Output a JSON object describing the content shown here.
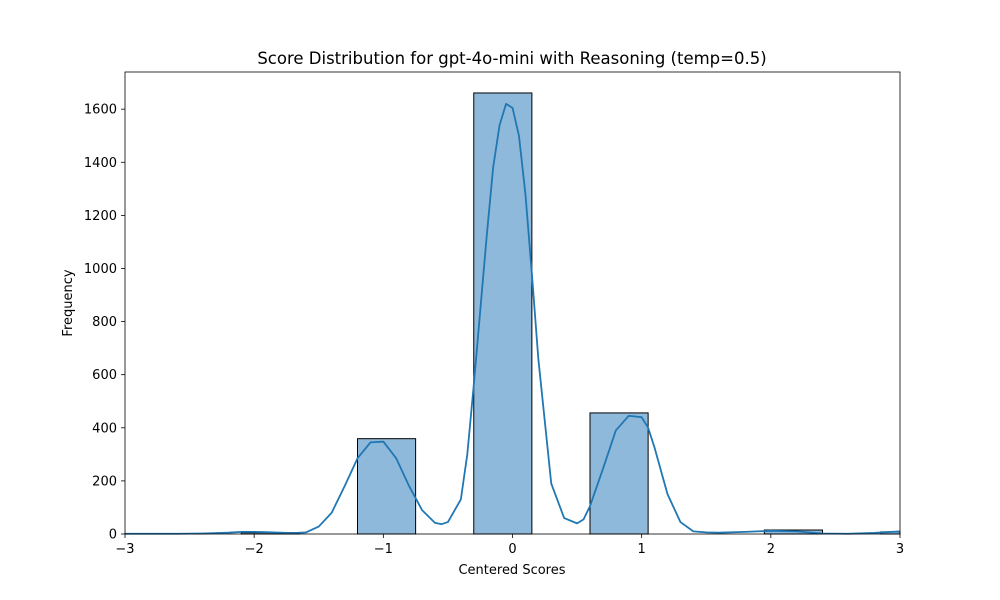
{
  "chart_data": {
    "type": "bar",
    "title": "Score Distribution for gpt-4o-mini with Reasoning (temp=0.5)",
    "xlabel": "Centered Scores",
    "ylabel": "Frequency",
    "xlim": [
      -3,
      3
    ],
    "ylim": [
      0,
      1740
    ],
    "xticks": [
      -3,
      -2,
      -1,
      0,
      1,
      2,
      3
    ],
    "xtick_labels": [
      "−3",
      "−2",
      "−1",
      "0",
      "1",
      "2",
      "3"
    ],
    "yticks": [
      0,
      200,
      400,
      600,
      800,
      1000,
      1200,
      1400,
      1600
    ],
    "ytick_labels": [
      "0",
      "200",
      "400",
      "600",
      "800",
      "1000",
      "1200",
      "1400",
      "1600"
    ],
    "grid": false,
    "legend": "none",
    "bar_color": "#8fb9da",
    "line_color": "#1f77b4",
    "bins": [
      {
        "x0": -3.0,
        "x1": -2.55,
        "value": 1
      },
      {
        "x0": -2.1,
        "x1": -1.65,
        "value": 5
      },
      {
        "x0": -1.2,
        "x1": -0.75,
        "value": 359
      },
      {
        "x0": -0.3,
        "x1": 0.15,
        "value": 1661
      },
      {
        "x0": 0.6,
        "x1": 1.05,
        "value": 456
      },
      {
        "x0": 1.95,
        "x1": 2.4,
        "value": 15
      },
      {
        "x0": 2.85,
        "x1": 3.0,
        "value": 8
      }
    ],
    "kde": {
      "x": [
        -3.0,
        -2.8,
        -2.6,
        -2.4,
        -2.2,
        -2.1,
        -2.0,
        -1.9,
        -1.8,
        -1.7,
        -1.6,
        -1.5,
        -1.4,
        -1.3,
        -1.2,
        -1.1,
        -1.0,
        -0.9,
        -0.8,
        -0.7,
        -0.6,
        -0.55,
        -0.5,
        -0.4,
        -0.35,
        -0.3,
        -0.2,
        -0.15,
        -0.1,
        -0.05,
        0.0,
        0.05,
        0.1,
        0.15,
        0.2,
        0.3,
        0.4,
        0.5,
        0.55,
        0.6,
        0.7,
        0.8,
        0.9,
        1.0,
        1.05,
        1.1,
        1.2,
        1.3,
        1.4,
        1.5,
        1.6,
        1.8,
        2.0,
        2.2,
        2.4,
        2.6,
        2.8,
        3.0
      ],
      "y": [
        1,
        1,
        1,
        2,
        5,
        8,
        8,
        7,
        5,
        3,
        6,
        28,
        80,
        180,
        285,
        345,
        348,
        285,
        180,
        90,
        42,
        37,
        45,
        130,
        300,
        560,
        1120,
        1380,
        1540,
        1620,
        1605,
        1500,
        1280,
        980,
        660,
        190,
        60,
        40,
        55,
        105,
        245,
        390,
        445,
        440,
        400,
        325,
        150,
        45,
        10,
        6,
        5,
        8,
        12,
        10,
        2,
        1,
        4,
        10
      ]
    }
  }
}
